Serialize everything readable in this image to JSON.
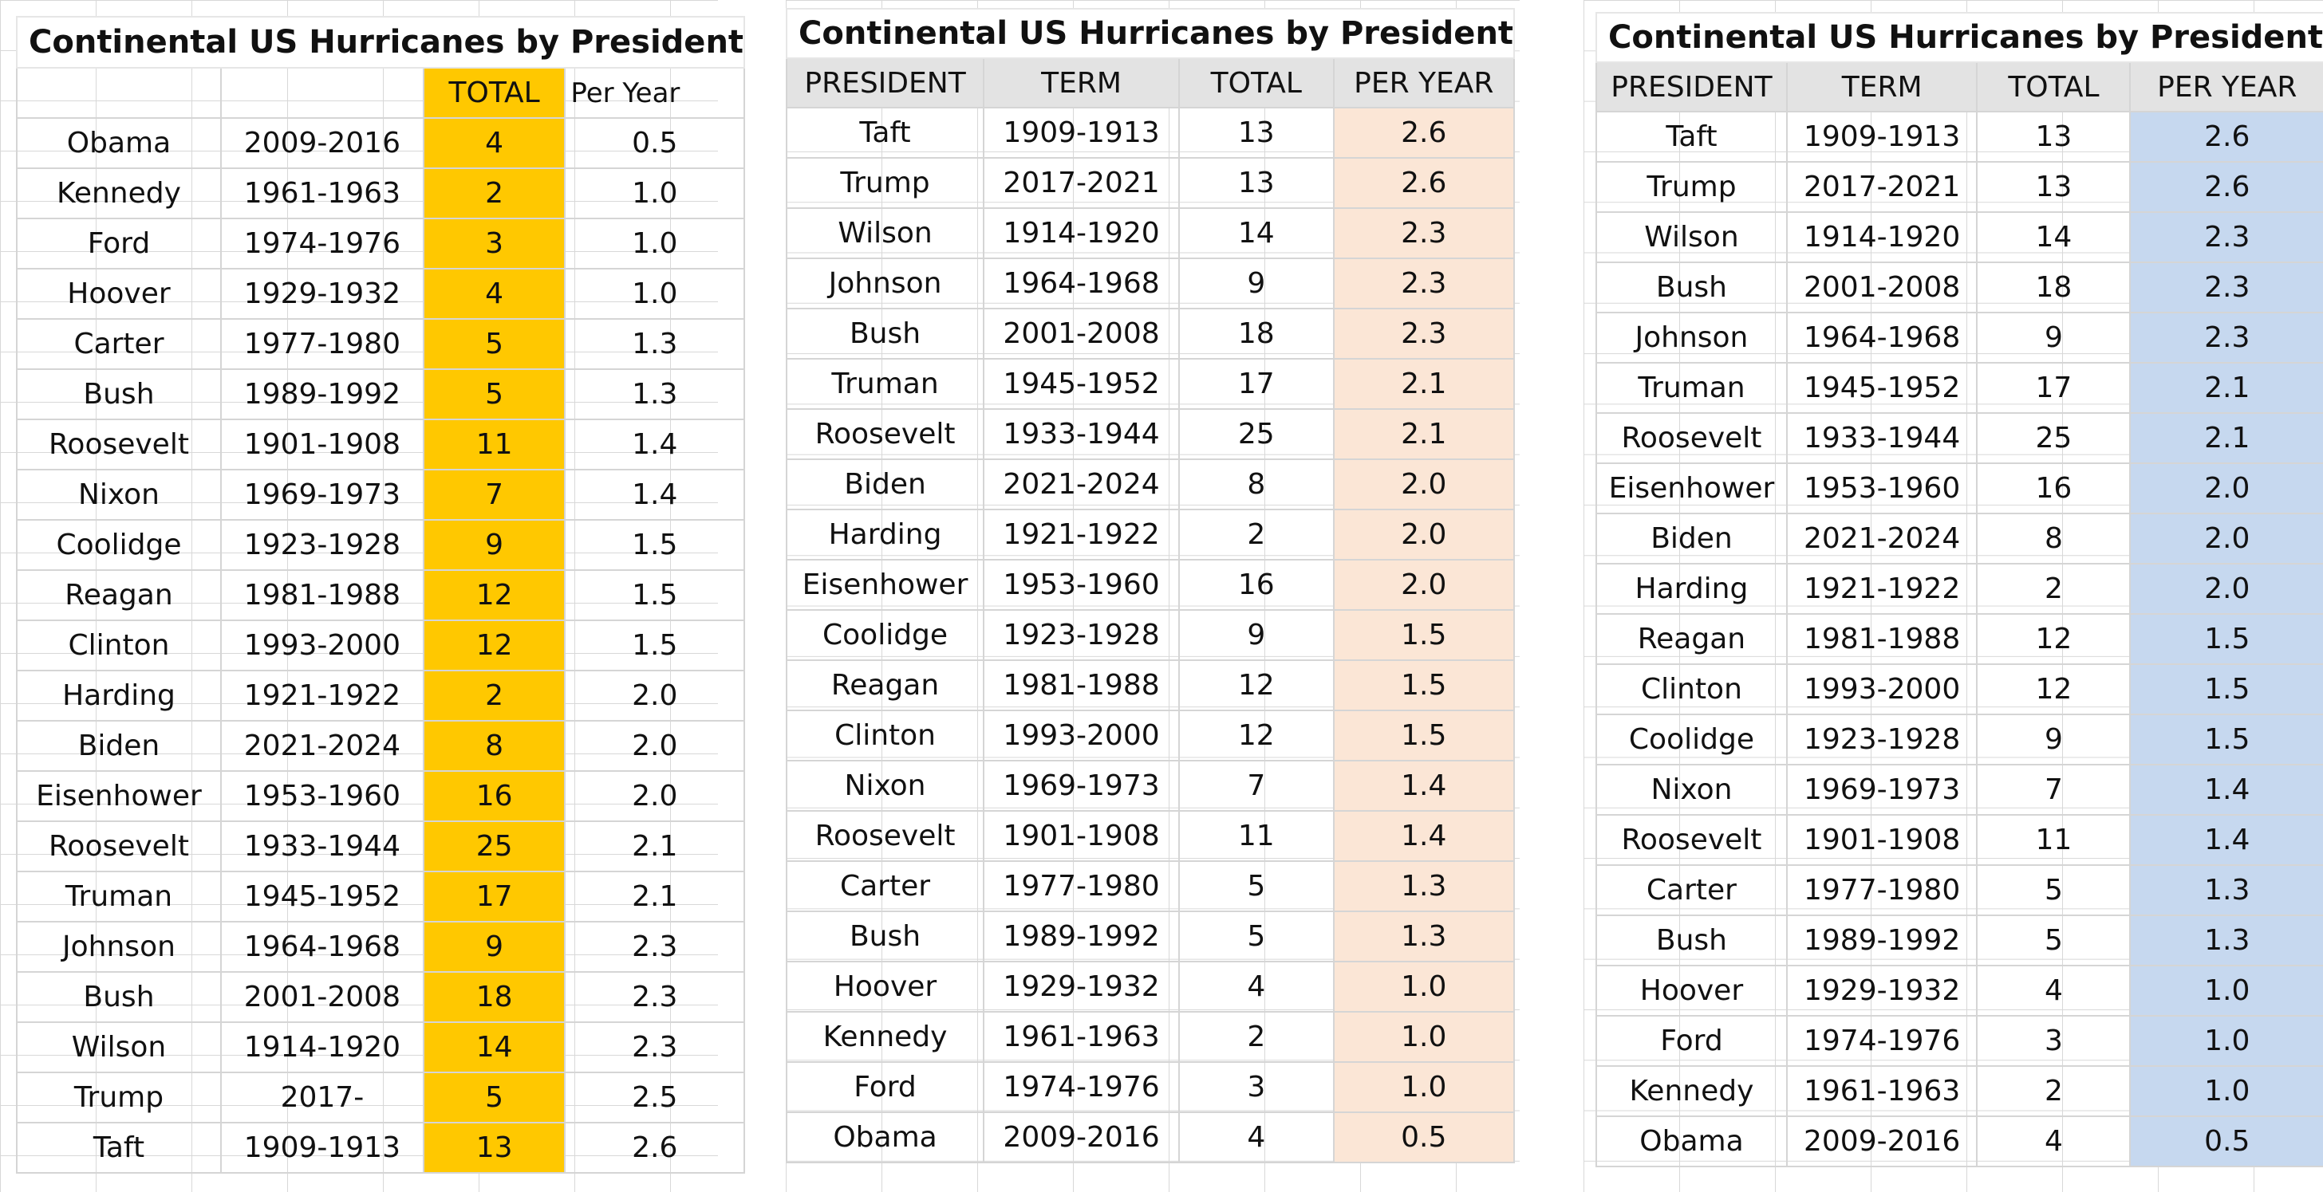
{
  "colors": {
    "total_highlight": "#ffc800",
    "per_year_peach": "#fbe6d6",
    "per_year_blue": "#c6d8ef",
    "header_gray": "#e3e3e3"
  },
  "table1": {
    "title": "Continental US Hurricanes by President",
    "headers": [
      "",
      "",
      "TOTAL",
      "Per Year"
    ],
    "rows": [
      [
        "Obama",
        "2009-2016",
        "4",
        "0.5"
      ],
      [
        "Kennedy",
        "1961-1963",
        "2",
        "1.0"
      ],
      [
        "Ford",
        "1974-1976",
        "3",
        "1.0"
      ],
      [
        "Hoover",
        "1929-1932",
        "4",
        "1.0"
      ],
      [
        "Carter",
        "1977-1980",
        "5",
        "1.3"
      ],
      [
        "Bush",
        "1989-1992",
        "5",
        "1.3"
      ],
      [
        "Roosevelt",
        "1901-1908",
        "11",
        "1.4"
      ],
      [
        "Nixon",
        "1969-1973",
        "7",
        "1.4"
      ],
      [
        "Coolidge",
        "1923-1928",
        "9",
        "1.5"
      ],
      [
        "Reagan",
        "1981-1988",
        "12",
        "1.5"
      ],
      [
        "Clinton",
        "1993-2000",
        "12",
        "1.5"
      ],
      [
        "Harding",
        "1921-1922",
        "2",
        "2.0"
      ],
      [
        "Biden",
        "2021-2024",
        "8",
        "2.0"
      ],
      [
        "Eisenhower",
        "1953-1960",
        "16",
        "2.0"
      ],
      [
        "Roosevelt",
        "1933-1944",
        "25",
        "2.1"
      ],
      [
        "Truman",
        "1945-1952",
        "17",
        "2.1"
      ],
      [
        "Johnson",
        "1964-1968",
        "9",
        "2.3"
      ],
      [
        "Bush",
        "2001-2008",
        "18",
        "2.3"
      ],
      [
        "Wilson",
        "1914-1920",
        "14",
        "2.3"
      ],
      [
        "Trump",
        "2017-",
        "5",
        "2.5"
      ],
      [
        "Taft",
        "1909-1913",
        "13",
        "2.6"
      ]
    ]
  },
  "table2": {
    "title": "Continental US Hurricanes by President",
    "headers": [
      "PRESIDENT",
      "TERM",
      "TOTAL",
      "PER YEAR"
    ],
    "rows": [
      [
        "Taft",
        "1909-1913",
        "13",
        "2.6"
      ],
      [
        "Trump",
        "2017-2021",
        "13",
        "2.6"
      ],
      [
        "Wilson",
        "1914-1920",
        "14",
        "2.3"
      ],
      [
        "Johnson",
        "1964-1968",
        "9",
        "2.3"
      ],
      [
        "Bush",
        "2001-2008",
        "18",
        "2.3"
      ],
      [
        "Truman",
        "1945-1952",
        "17",
        "2.1"
      ],
      [
        "Roosevelt",
        "1933-1944",
        "25",
        "2.1"
      ],
      [
        "Biden",
        "2021-2024",
        "8",
        "2.0"
      ],
      [
        "Harding",
        "1921-1922",
        "2",
        "2.0"
      ],
      [
        "Eisenhower",
        "1953-1960",
        "16",
        "2.0"
      ],
      [
        "Coolidge",
        "1923-1928",
        "9",
        "1.5"
      ],
      [
        "Reagan",
        "1981-1988",
        "12",
        "1.5"
      ],
      [
        "Clinton",
        "1993-2000",
        "12",
        "1.5"
      ],
      [
        "Nixon",
        "1969-1973",
        "7",
        "1.4"
      ],
      [
        "Roosevelt",
        "1901-1908",
        "11",
        "1.4"
      ],
      [
        "Carter",
        "1977-1980",
        "5",
        "1.3"
      ],
      [
        "Bush",
        "1989-1992",
        "5",
        "1.3"
      ],
      [
        "Hoover",
        "1929-1932",
        "4",
        "1.0"
      ],
      [
        "Kennedy",
        "1961-1963",
        "2",
        "1.0"
      ],
      [
        "Ford",
        "1974-1976",
        "3",
        "1.0"
      ],
      [
        "Obama",
        "2009-2016",
        "4",
        "0.5"
      ]
    ]
  },
  "table3": {
    "title": "Continental US Hurricanes by President",
    "headers": [
      "PRESIDENT",
      "TERM",
      "TOTAL",
      "PER YEAR"
    ],
    "rows": [
      [
        "Taft",
        "1909-1913",
        "13",
        "2.6"
      ],
      [
        "Trump",
        "2017-2021",
        "13",
        "2.6"
      ],
      [
        "Wilson",
        "1914-1920",
        "14",
        "2.3"
      ],
      [
        "Bush",
        "2001-2008",
        "18",
        "2.3"
      ],
      [
        "Johnson",
        "1964-1968",
        "9",
        "2.3"
      ],
      [
        "Truman",
        "1945-1952",
        "17",
        "2.1"
      ],
      [
        "Roosevelt",
        "1933-1944",
        "25",
        "2.1"
      ],
      [
        "Eisenhower",
        "1953-1960",
        "16",
        "2.0"
      ],
      [
        "Biden",
        "2021-2024",
        "8",
        "2.0"
      ],
      [
        "Harding",
        "1921-1922",
        "2",
        "2.0"
      ],
      [
        "Reagan",
        "1981-1988",
        "12",
        "1.5"
      ],
      [
        "Clinton",
        "1993-2000",
        "12",
        "1.5"
      ],
      [
        "Coolidge",
        "1923-1928",
        "9",
        "1.5"
      ],
      [
        "Nixon",
        "1969-1973",
        "7",
        "1.4"
      ],
      [
        "Roosevelt",
        "1901-1908",
        "11",
        "1.4"
      ],
      [
        "Carter",
        "1977-1980",
        "5",
        "1.3"
      ],
      [
        "Bush",
        "1989-1992",
        "5",
        "1.3"
      ],
      [
        "Hoover",
        "1929-1932",
        "4",
        "1.0"
      ],
      [
        "Ford",
        "1974-1976",
        "3",
        "1.0"
      ],
      [
        "Kennedy",
        "1961-1963",
        "2",
        "1.0"
      ],
      [
        "Obama",
        "2009-2016",
        "4",
        "0.5"
      ]
    ]
  }
}
